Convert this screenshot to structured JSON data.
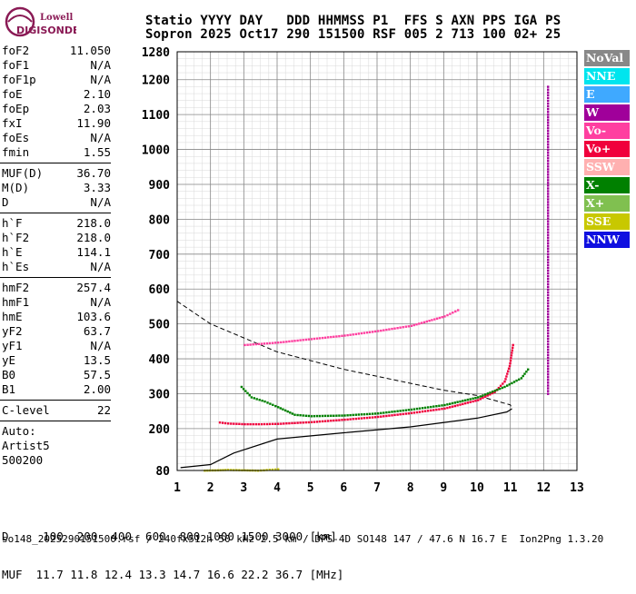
{
  "logo": {
    "line1": "Lowell",
    "line2": "DIGISONDE"
  },
  "header": {
    "line1": "Statio YYYY DAY   DDD HHMMSS P1  FFS S AXN PPS IGA PS",
    "line2": "Sopron 2025 Oct17 290 151500 RSF 005 2 713 100 02+ 25"
  },
  "params": {
    "group1": [
      {
        "label": "foF2",
        "value": "11.050"
      },
      {
        "label": "foF1",
        "value": "N/A"
      },
      {
        "label": "foF1p",
        "value": "N/A"
      },
      {
        "label": "foE",
        "value": "2.10"
      },
      {
        "label": "foEp",
        "value": "2.03"
      },
      {
        "label": "fxI",
        "value": "11.90"
      },
      {
        "label": "foEs",
        "value": "N/A"
      },
      {
        "label": "fmin",
        "value": "1.55"
      }
    ],
    "group2": [
      {
        "label": "MUF(D)",
        "value": "36.70"
      },
      {
        "label": "M(D)",
        "value": "3.33"
      },
      {
        "label": "D",
        "value": "N/A"
      }
    ],
    "group3": [
      {
        "label": "h`F",
        "value": "218.0"
      },
      {
        "label": "h`F2",
        "value": "218.0"
      },
      {
        "label": "h`E",
        "value": "114.1"
      },
      {
        "label": "h`Es",
        "value": "N/A"
      }
    ],
    "group4": [
      {
        "label": "hmF2",
        "value": "257.4"
      },
      {
        "label": "hmF1",
        "value": "N/A"
      },
      {
        "label": "hmE",
        "value": "103.6"
      },
      {
        "label": "yF2",
        "value": "63.7"
      },
      {
        "label": "yF1",
        "value": "N/A"
      },
      {
        "label": "yE",
        "value": "13.5"
      },
      {
        "label": "B0",
        "value": "57.5"
      },
      {
        "label": "B1",
        "value": "2.00"
      }
    ],
    "group5": [
      {
        "label": "C-level",
        "value": "22"
      }
    ],
    "auto": [
      "Auto:",
      "Artist5",
      "500200"
    ]
  },
  "legend": [
    {
      "label": "NoVal",
      "color": "#888888"
    },
    {
      "label": "NNE",
      "color": "#00e5ee"
    },
    {
      "label": "E",
      "color": "#3fa9ff"
    },
    {
      "label": "W",
      "color": "#a0009a"
    },
    {
      "label": "Vo-",
      "color": "#ff3fa0"
    },
    {
      "label": "Vo+",
      "color": "#f0003c"
    },
    {
      "label": "SSW",
      "color": "#ffb0b0"
    },
    {
      "label": "X-",
      "color": "#008000"
    },
    {
      "label": "X+",
      "color": "#80c050"
    },
    {
      "label": "SSE",
      "color": "#c8c800"
    },
    {
      "label": "NNW",
      "color": "#1010e0"
    }
  ],
  "footer": {
    "line1": "D     100  200  400  600  800 1000 1500 3000 [km]",
    "line2": "MUF  11.7 11.8 12.4 13.3 14.7 16.6 22.2 36.7 [MHz]",
    "filename": "so148_2025290151500.rsf / 240fx512h 50 kHz 2.5 km / DPS-4D SO148 147 / 47.6 N 16.7 E  Ion2Png 1.3.20"
  },
  "chart_data": {
    "type": "scatter",
    "xlim": [
      1,
      13
    ],
    "ylim": [
      80,
      1280
    ],
    "x_ticks": [
      1,
      2,
      3,
      4,
      5,
      6,
      7,
      8,
      9,
      10,
      11,
      12,
      13
    ],
    "y_ticks": [
      80,
      200,
      300,
      400,
      500,
      600,
      700,
      800,
      900,
      1000,
      1100,
      1200,
      1280
    ],
    "grid": true,
    "legend_position": "right",
    "series": [
      {
        "name": "Vo+",
        "color": "#f0003c",
        "points": [
          [
            2.25,
            218
          ],
          [
            2.5,
            215
          ],
          [
            3,
            213
          ],
          [
            3.5,
            213
          ],
          [
            4,
            214
          ],
          [
            5,
            219
          ],
          [
            6,
            226
          ],
          [
            7,
            234
          ],
          [
            8,
            245
          ],
          [
            9,
            258
          ],
          [
            10,
            282
          ],
          [
            10.5,
            305
          ],
          [
            10.8,
            335
          ],
          [
            10.95,
            380
          ],
          [
            11.05,
            440
          ]
        ]
      },
      {
        "name": "X-",
        "color": "#008000",
        "points": [
          [
            2.9,
            320
          ],
          [
            3.2,
            290
          ],
          [
            3.6,
            278
          ],
          [
            4,
            262
          ],
          [
            4.5,
            240
          ],
          [
            5,
            236
          ],
          [
            6,
            238
          ],
          [
            7,
            244
          ],
          [
            8,
            255
          ],
          [
            9,
            268
          ],
          [
            10,
            290
          ],
          [
            10.8,
            320
          ],
          [
            11.3,
            345
          ],
          [
            11.5,
            370
          ]
        ]
      },
      {
        "name": "Vo-",
        "color": "#ff3fa0",
        "points": [
          [
            3,
            440
          ],
          [
            4,
            447
          ],
          [
            5,
            457
          ],
          [
            6,
            467
          ],
          [
            7,
            480
          ],
          [
            8,
            495
          ],
          [
            9,
            522
          ],
          [
            9.4,
            540
          ]
        ]
      },
      {
        "name": "W",
        "color": "#a0009a",
        "points": [
          [
            12.1,
            1180
          ],
          [
            12.1,
            1100
          ],
          [
            12.1,
            1030
          ],
          [
            12.1,
            340
          ],
          [
            12.1,
            300
          ]
        ]
      },
      {
        "name": "SSE",
        "color": "#c8c800",
        "points": [
          [
            1.8,
            80
          ],
          [
            2.5,
            82
          ],
          [
            3,
            81
          ],
          [
            3.4,
            80
          ],
          [
            4,
            84
          ]
        ]
      }
    ],
    "profile": {
      "points": [
        [
          1.1,
          88
        ],
        [
          2,
          97
        ],
        [
          2.7,
          130
        ],
        [
          4,
          170
        ],
        [
          6,
          188
        ],
        [
          8,
          205
        ],
        [
          10,
          230
        ],
        [
          10.9,
          248
        ],
        [
          11.05,
          257
        ]
      ]
    },
    "dashed": {
      "points": [
        [
          1,
          565
        ],
        [
          2,
          500
        ],
        [
          3,
          460
        ],
        [
          4,
          420
        ],
        [
          5,
          395
        ],
        [
          6,
          370
        ],
        [
          7,
          350
        ],
        [
          8,
          330
        ],
        [
          9,
          310
        ],
        [
          10,
          295
        ],
        [
          11,
          268
        ],
        [
          11.05,
          257
        ]
      ]
    }
  }
}
